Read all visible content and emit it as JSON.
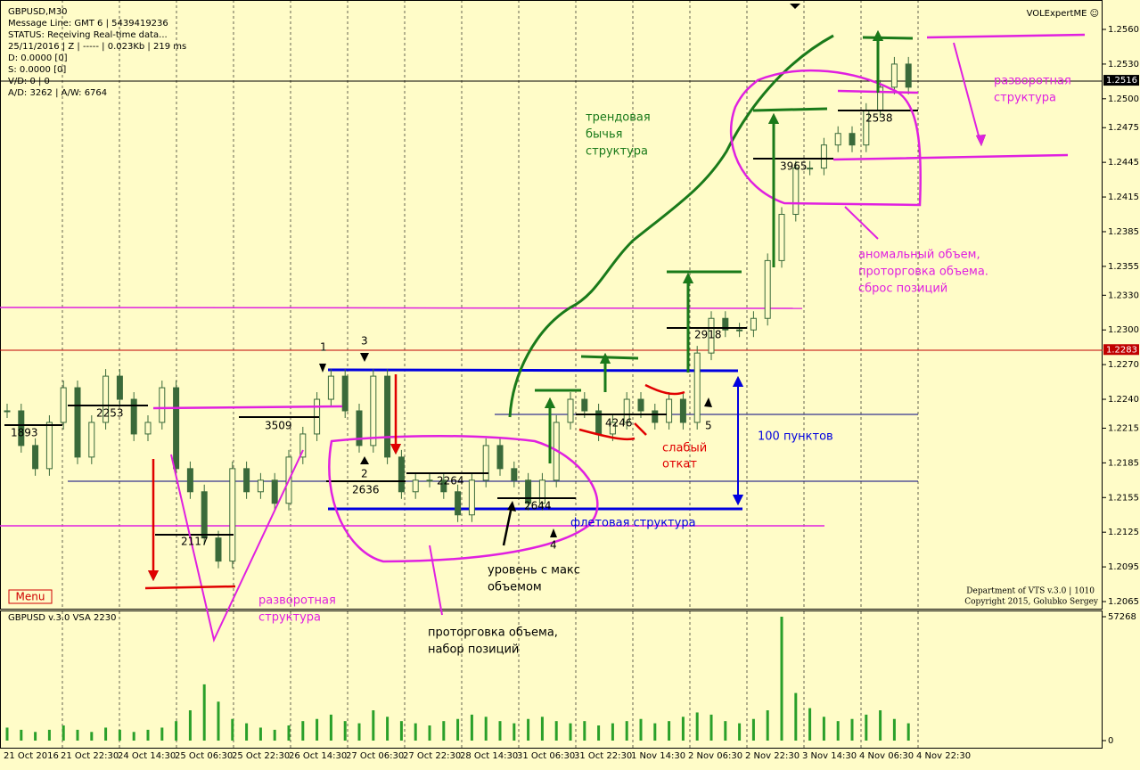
{
  "header": {
    "lines": [
      "GBPUSD,M30",
      "Message Line: GMT 6 | 5439419236",
      "STATUS:  Receiving Real-time data...",
      "25/11/2016 | Z | ----- | 0.023Kb | 219 ms",
      "D: 0.0000  [0]",
      "S: 0.0000  [0]",
      "V/D: 0 | 0",
      "A/D: 3262 | A/W: 6764"
    ]
  },
  "brand": "VOLExpertME ☺",
  "menu": "Menu",
  "footer": [
    "Department of VTS  v.3.0 | 1010",
    "Copyright 2015, Golubko Sergey"
  ],
  "price_axis": {
    "ylim": [
      1.2065,
      1.256
    ],
    "ticks": [
      {
        "value": 1.256,
        "label": "1.2560"
      },
      {
        "value": 1.253,
        "label": "1.2530"
      },
      {
        "value": 1.25,
        "label": "1.2500"
      },
      {
        "value": 1.2475,
        "label": "1.2475"
      },
      {
        "value": 1.2445,
        "label": "1.2445"
      },
      {
        "value": 1.2415,
        "label": "1.2415"
      },
      {
        "value": 1.2385,
        "label": "1.2385"
      },
      {
        "value": 1.2355,
        "label": "1.2355"
      },
      {
        "value": 1.233,
        "label": "1.2330"
      },
      {
        "value": 1.23,
        "label": "1.2300"
      },
      {
        "value": 1.227,
        "label": "1.2270"
      },
      {
        "value": 1.224,
        "label": "1.2240"
      },
      {
        "value": 1.2215,
        "label": "1.2215"
      },
      {
        "value": 1.2185,
        "label": "1.2185"
      },
      {
        "value": 1.2155,
        "label": "1.2155"
      },
      {
        "value": 1.2125,
        "label": "1.2125"
      },
      {
        "value": 1.2095,
        "label": "1.2095"
      },
      {
        "value": 1.2065,
        "label": "1.2065"
      }
    ],
    "current": {
      "value": 1.2516,
      "label": "1.2516"
    },
    "marked": {
      "value": 1.2283,
      "label": "1.2283"
    }
  },
  "time_axis": [
    "21 Oct 2016",
    "21 Oct 22:30",
    "24 Oct 14:30",
    "25 Oct 06:30",
    "25 Oct 22:30",
    "26 Oct 14:30",
    "27 Oct 06:30",
    "27 Oct 22:30",
    "28 Oct 14:30",
    "31 Oct 06:30",
    "31 Oct 22:30",
    "1 Nov 14:30",
    "2 Nov 06:30",
    "2 Nov 22:30",
    "3 Nov 14:30",
    "4 Nov 06:30",
    "4 Nov 22:30"
  ],
  "closes": [
    1.223,
    1.22,
    1.218,
    1.222,
    1.225,
    1.219,
    1.222,
    1.226,
    1.224,
    1.221,
    1.222,
    1.225,
    1.218,
    1.216,
    1.212,
    1.21,
    1.218,
    1.216,
    1.217,
    1.215,
    1.219,
    1.221,
    1.224,
    1.226,
    1.223,
    1.22,
    1.226,
    1.219,
    1.216,
    1.217,
    1.217,
    1.216,
    1.214,
    1.217,
    1.22,
    1.218,
    1.217,
    1.215,
    1.217,
    1.222,
    1.224,
    1.223,
    1.221,
    1.222,
    1.224,
    1.223,
    1.222,
    1.224,
    1.222,
    1.228,
    1.231,
    1.23,
    1.23,
    1.231,
    1.236,
    1.24,
    1.244,
    1.244,
    1.246,
    1.247,
    1.246,
    1.249,
    1.251,
    1.253,
    1.251
  ],
  "volume_panel": {
    "title": "GBPUSD v.3.0 VSA 2230",
    "ylim": [
      0,
      57268
    ],
    "ticks": [
      57268,
      0
    ],
    "values": [
      6000,
      5000,
      4000,
      5000,
      7000,
      5000,
      4000,
      6000,
      5000,
      4000,
      5000,
      6000,
      9000,
      14000,
      26000,
      18000,
      10000,
      8000,
      6000,
      5000,
      7000,
      9000,
      10000,
      12000,
      9000,
      8000,
      14000,
      11000,
      9000,
      8000,
      7000,
      9000,
      10000,
      12000,
      11000,
      9000,
      8000,
      10000,
      11000,
      9000,
      8000,
      9000,
      7000,
      8000,
      9000,
      10000,
      8000,
      9000,
      11000,
      13000,
      12000,
      9000,
      8000,
      10000,
      14000,
      57268,
      22000,
      15000,
      11000,
      9000,
      10000,
      12000,
      14000,
      10000,
      8000
    ]
  },
  "levels": [
    "1893",
    "2253",
    "3509",
    "2117",
    "2636",
    "2264",
    "2644",
    "4246",
    "2918",
    "3965",
    "2538"
  ],
  "markers": [
    "1",
    "2",
    "3",
    "4",
    "5"
  ],
  "annotations": {
    "trend": [
      "трендовая",
      "бычья",
      "структура"
    ],
    "reversal_top": [
      "разворотная",
      "структура"
    ],
    "anomaly": [
      "аномальный объем,",
      "проторговка объема.",
      "сброс позиций"
    ],
    "points": "100 пунктов",
    "weak": [
      "слабый",
      "откат"
    ],
    "flat": "флетовая структура",
    "max_level": [
      "уровень с макс",
      "объемом"
    ],
    "accumulation": [
      "проторговка объема,",
      "набор позиций"
    ],
    "reversal_bottom": [
      "разворотная",
      "структура"
    ]
  }
}
